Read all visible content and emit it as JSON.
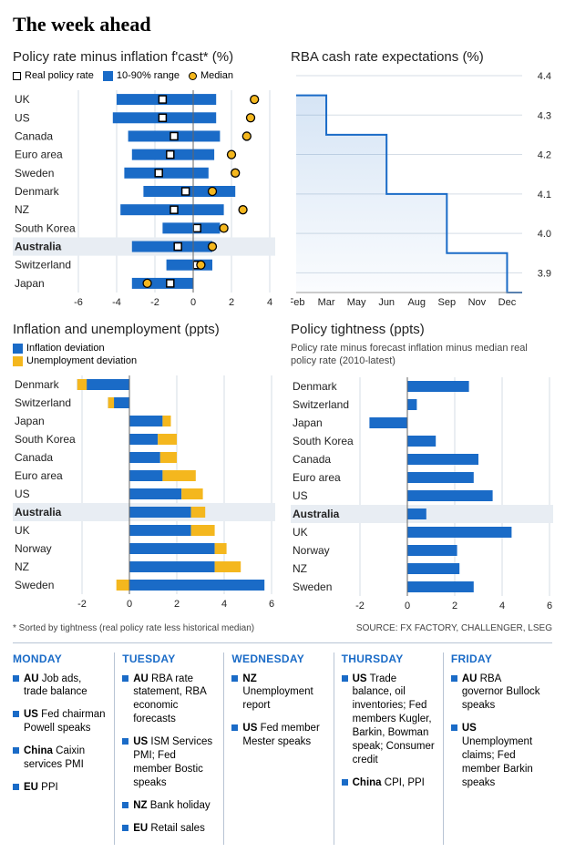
{
  "title": "The week ahead",
  "colors": {
    "blue": "#1a6bc7",
    "yellow": "#f4b71e",
    "grid": "#d5dde6",
    "highlight": "#e8edf3",
    "axis": "#888888"
  },
  "footnote_left": "* Sorted by tightness (real policy rate less historical median)",
  "footnote_right": "SOURCE: FX FACTORY, CHALLENGER, LSEG",
  "chart1": {
    "title": "Policy rate minus inflation f'cast* (%)",
    "legend": [
      {
        "kind": "box",
        "label": "Real policy rate"
      },
      {
        "kind": "fill",
        "color": "#1a6bc7",
        "label": "10-90% range"
      },
      {
        "kind": "circle",
        "color": "#f4b71e",
        "label": "Median"
      }
    ],
    "xmin": -6,
    "xmax": 4,
    "xticks": [
      -6,
      -4,
      -2,
      0,
      2,
      4
    ],
    "rows": [
      {
        "label": "UK",
        "range": [
          -4.0,
          1.2
        ],
        "real": -1.6,
        "median": 3.2
      },
      {
        "label": "US",
        "range": [
          -4.2,
          1.2
        ],
        "real": -1.6,
        "median": 3.0
      },
      {
        "label": "Canada",
        "range": [
          -3.4,
          1.4
        ],
        "real": -1.0,
        "median": 2.8
      },
      {
        "label": "Euro area",
        "range": [
          -3.2,
          1.1
        ],
        "real": -1.2,
        "median": 2.0
      },
      {
        "label": "Sweden",
        "range": [
          -3.6,
          0.8
        ],
        "real": -1.8,
        "median": 2.2
      },
      {
        "label": "Denmark",
        "range": [
          -2.6,
          2.2
        ],
        "real": -0.4,
        "median": 1.0
      },
      {
        "label": "NZ",
        "range": [
          -3.8,
          1.6
        ],
        "real": -1.0,
        "median": 2.6
      },
      {
        "label": "South Korea",
        "range": [
          -1.6,
          1.4
        ],
        "real": 0.2,
        "median": 1.6
      },
      {
        "label": "Australia",
        "range": [
          -3.2,
          1.0
        ],
        "real": -0.8,
        "median": 1.0,
        "bold": true
      },
      {
        "label": "Switzerland",
        "range": [
          -1.4,
          1.0
        ],
        "real": 0.2,
        "median": 0.4
      },
      {
        "label": "Japan",
        "range": [
          -3.2,
          0.0
        ],
        "real": -1.2,
        "median": -2.4
      }
    ]
  },
  "chart2": {
    "title": "RBA cash rate expectations (%)",
    "ymin": 3.85,
    "ymax": 4.4,
    "yticks": [
      3.9,
      4.0,
      4.1,
      4.2,
      4.3,
      4.4
    ],
    "months": [
      "Feb",
      "Mar",
      "May",
      "Jun",
      "Aug",
      "Sep",
      "Nov",
      "Dec"
    ],
    "steps": [
      {
        "from": "Feb",
        "to": "Mar",
        "y": 4.35
      },
      {
        "from": "Mar",
        "to": "Jun",
        "y": 4.25
      },
      {
        "from": "Jun",
        "to": "Sep",
        "y": 4.1
      },
      {
        "from": "Sep",
        "to": "Dec",
        "y": 3.95
      },
      {
        "from": "Dec",
        "to": "end",
        "y": 3.85
      }
    ]
  },
  "chart3": {
    "title": "Inflation and unemployment (ppts)",
    "legend": [
      {
        "kind": "fill",
        "color": "#1a6bc7",
        "label": "Inflation deviation"
      },
      {
        "kind": "fill",
        "color": "#f4b71e",
        "label": "Unemployment deviation"
      }
    ],
    "xmin": -2,
    "xmax": 6,
    "xticks": [
      -2,
      0,
      2,
      4,
      6
    ],
    "rows": [
      {
        "label": "Denmark",
        "infl": -2.2,
        "unemp": 0.4
      },
      {
        "label": "Switzerland",
        "infl": -0.9,
        "unemp": 0.25
      },
      {
        "label": "Japan",
        "infl": 1.4,
        "unemp": 0.35
      },
      {
        "label": "South Korea",
        "infl": 1.2,
        "unemp": 0.8
      },
      {
        "label": "Canada",
        "infl": 1.3,
        "unemp": 0.7
      },
      {
        "label": "Euro area",
        "infl": 1.4,
        "unemp": 1.4
      },
      {
        "label": "US",
        "infl": 2.2,
        "unemp": 0.9
      },
      {
        "label": "Australia",
        "infl": 2.6,
        "unemp": 0.6,
        "bold": true
      },
      {
        "label": "UK",
        "infl": 2.6,
        "unemp": 1.0
      },
      {
        "label": "Norway",
        "infl": 3.6,
        "unemp": 0.5
      },
      {
        "label": "NZ",
        "infl": 3.6,
        "unemp": 1.1
      },
      {
        "label": "Sweden",
        "infl": 5.7,
        "unemp": -0.55
      }
    ]
  },
  "chart4": {
    "title": "Policy tightness (ppts)",
    "subtitle": "Policy rate minus forecast inflation minus median real policy rate (2010-latest)",
    "xmin": -2,
    "xmax": 6,
    "xticks": [
      -2,
      0,
      2,
      4,
      6
    ],
    "rows": [
      {
        "label": "Denmark",
        "val": 2.6
      },
      {
        "label": "Switzerland",
        "val": 0.4
      },
      {
        "label": "Japan",
        "val": -1.6
      },
      {
        "label": "South Korea",
        "val": 1.2
      },
      {
        "label": "Canada",
        "val": 3.0
      },
      {
        "label": "Euro area",
        "val": 2.8
      },
      {
        "label": "US",
        "val": 3.6
      },
      {
        "label": "Australia",
        "val": 0.8,
        "bold": true
      },
      {
        "label": "UK",
        "val": 4.4
      },
      {
        "label": "Norway",
        "val": 2.1
      },
      {
        "label": "NZ",
        "val": 2.2
      },
      {
        "label": "Sweden",
        "val": 2.8
      }
    ]
  },
  "calendar": [
    {
      "day": "MONDAY",
      "items": [
        {
          "cc": "AU",
          "text": "Job ads, trade balance"
        },
        {
          "cc": "US",
          "text": "Fed chairman Powell speaks"
        },
        {
          "cc": "China",
          "text": "Caixin services PMI"
        },
        {
          "cc": "EU",
          "text": "PPI"
        }
      ]
    },
    {
      "day": "TUESDAY",
      "items": [
        {
          "cc": "AU",
          "text": "RBA rate statement, RBA economic forecasts"
        },
        {
          "cc": "US",
          "text": "ISM Services PMI; Fed member Bostic speaks"
        },
        {
          "cc": "NZ",
          "text": "Bank holiday"
        },
        {
          "cc": "EU",
          "text": "Retail sales"
        }
      ]
    },
    {
      "day": "WEDNESDAY",
      "items": [
        {
          "cc": "NZ",
          "text": "Unemployment report"
        },
        {
          "cc": "US",
          "text": "Fed member Mester speaks"
        }
      ]
    },
    {
      "day": "THURSDAY",
      "items": [
        {
          "cc": "US",
          "text": "Trade balance, oil inventories; Fed members Kugler, Barkin, Bowman speak; Consumer credit"
        },
        {
          "cc": "China",
          "text": "CPI, PPI"
        }
      ]
    },
    {
      "day": "FRIDAY",
      "items": [
        {
          "cc": "AU",
          "text": "RBA governor Bullock speaks"
        },
        {
          "cc": "US",
          "text": "Unemployment claims; Fed member Barkin speaks"
        }
      ]
    }
  ]
}
